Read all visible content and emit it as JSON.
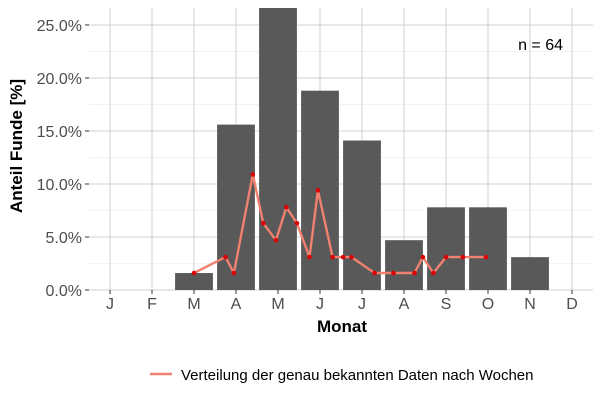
{
  "chart_data": {
    "type": "bar",
    "categories": [
      "J",
      "F",
      "M",
      "A",
      "M",
      "J",
      "J",
      "A",
      "S",
      "O",
      "N",
      "D"
    ],
    "values": [
      0,
      0,
      1.6,
      15.6,
      26.6,
      18.8,
      14.1,
      4.7,
      7.8,
      7.8,
      3.1,
      0
    ],
    "xlabel": "Monat",
    "ylabel": "Anteil Funde [%]",
    "ylim": [
      0,
      26.6
    ],
    "yticks": [
      0,
      5,
      10,
      15,
      20,
      25
    ],
    "ytick_labels": [
      "0.0%",
      "5.0%",
      "10.0%",
      "15.0%",
      "20.0%",
      "25.0%"
    ],
    "grid": true,
    "annotation": "n = 64",
    "legend_position": "bottom",
    "series": [
      {
        "name": "Verteilung der genau bekannten Daten nach Wochen",
        "type": "line",
        "color": "#f08070",
        "point_color": "#dd0000",
        "x": [
          3.0,
          3.75,
          3.95,
          4.4,
          4.65,
          4.95,
          5.2,
          5.45,
          5.75,
          5.95,
          6.3,
          6.55,
          6.75,
          7.3,
          7.75,
          8.25,
          8.45,
          8.7,
          9.0,
          9.4,
          9.95
        ],
        "y": [
          1.6,
          3.1,
          1.6,
          10.9,
          6.3,
          4.7,
          7.8,
          6.3,
          3.1,
          9.4,
          3.1,
          3.1,
          3.1,
          1.6,
          1.6,
          1.6,
          3.1,
          1.6,
          3.1,
          3.1,
          3.1
        ]
      }
    ],
    "bar_color": "#595959"
  }
}
